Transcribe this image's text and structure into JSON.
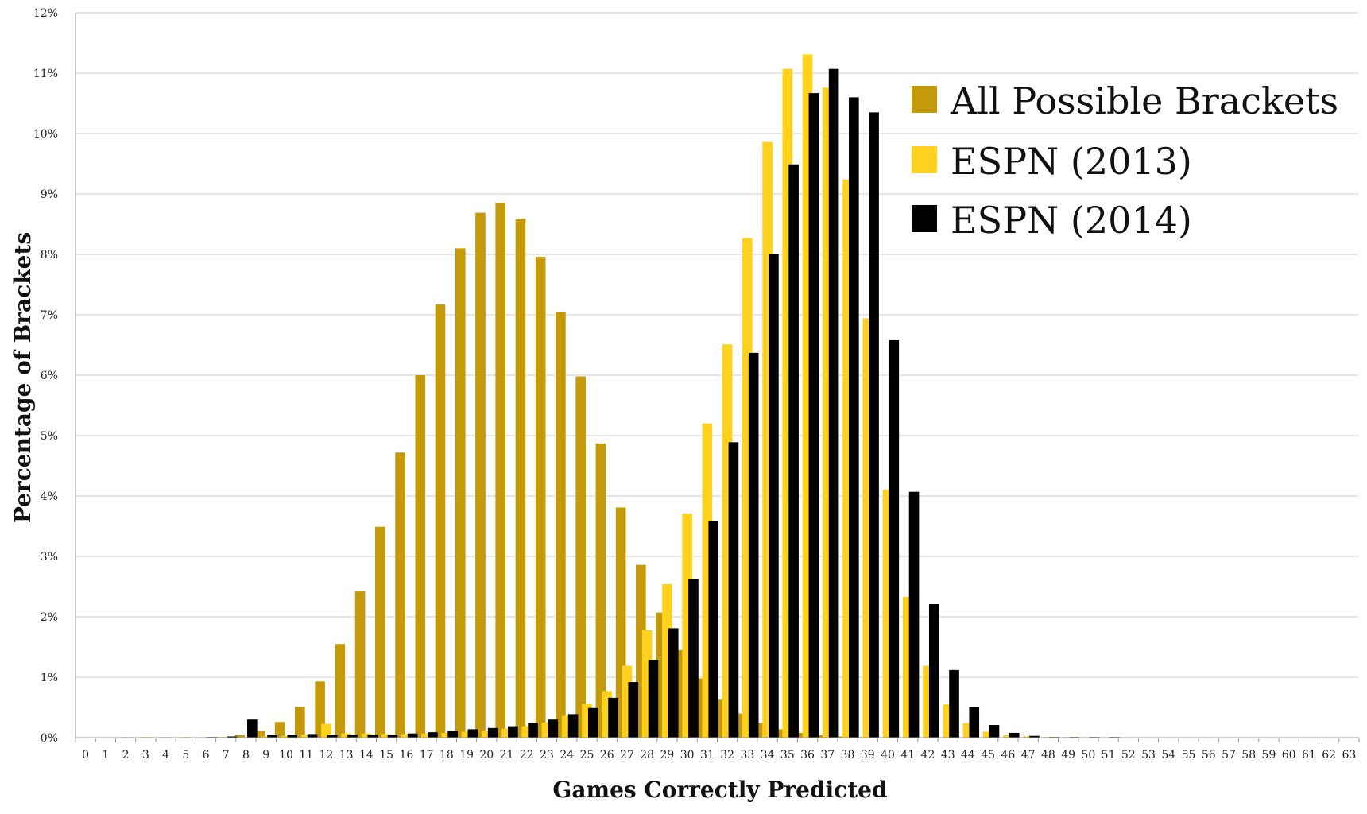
{
  "chart_data": {
    "type": "bar",
    "xlabel": "Games Correctly Predicted",
    "ylabel": "Percentage of Brackets",
    "ylim": [
      0,
      12
    ],
    "yticks": [
      "0%",
      "1%",
      "2%",
      "3%",
      "4%",
      "5%",
      "6%",
      "7%",
      "8%",
      "9%",
      "10%",
      "11%",
      "12%"
    ],
    "categories": [
      "0",
      "1",
      "2",
      "3",
      "4",
      "5",
      "6",
      "7",
      "8",
      "9",
      "10",
      "11",
      "12",
      "13",
      "14",
      "15",
      "16",
      "17",
      "18",
      "19",
      "20",
      "21",
      "22",
      "23",
      "24",
      "25",
      "26",
      "27",
      "28",
      "29",
      "30",
      "31",
      "32",
      "33",
      "34",
      "35",
      "36",
      "37",
      "38",
      "39",
      "40",
      "41",
      "42",
      "43",
      "44",
      "45",
      "46",
      "47",
      "48",
      "49",
      "50",
      "51",
      "52",
      "53",
      "54",
      "55",
      "56",
      "57",
      "58",
      "59",
      "60",
      "61",
      "62",
      "63"
    ],
    "grid": true,
    "legend_position": "top-right",
    "colors": {
      "all": "#C49A0A",
      "espn2013": "#FFD11F",
      "espn2014": "#000000"
    },
    "series": [
      {
        "name": "All Possible Brackets",
        "color": "#C49A0A",
        "values": [
          0,
          0,
          0,
          0,
          0,
          0,
          0,
          0.01,
          0.04,
          0.11,
          0.26,
          0.51,
          0.93,
          1.55,
          2.42,
          3.49,
          4.72,
          6.0,
          7.17,
          8.1,
          8.69,
          8.85,
          8.59,
          7.96,
          7.05,
          5.98,
          4.87,
          3.81,
          2.86,
          2.07,
          1.45,
          0.98,
          0.64,
          0.4,
          0.24,
          0.14,
          0.08,
          0.04,
          0.02,
          0.01,
          0,
          0,
          0,
          0,
          0,
          0,
          0,
          0,
          0,
          0,
          0,
          0,
          0,
          0,
          0,
          0,
          0,
          0,
          0,
          0,
          0,
          0,
          0,
          0
        ]
      },
      {
        "name": "ESPN (2013)",
        "color": "#FFD11F",
        "values": [
          0,
          0,
          0.01,
          0.01,
          0.01,
          0.01,
          0.01,
          0.01,
          0.01,
          0.02,
          0.03,
          0.05,
          0.23,
          0.07,
          0.07,
          0.06,
          0.06,
          0.07,
          0.08,
          0.1,
          0.12,
          0.15,
          0.19,
          0.25,
          0.36,
          0.56,
          0.77,
          1.19,
          1.78,
          2.54,
          3.71,
          5.2,
          6.51,
          8.27,
          9.86,
          11.07,
          11.31,
          10.76,
          9.24,
          6.94,
          4.11,
          2.33,
          1.19,
          0.55,
          0.24,
          0.1,
          0.04,
          0.02,
          0.01,
          0.01,
          0,
          0,
          0,
          0,
          0,
          0,
          0,
          0,
          0,
          0,
          0,
          0,
          0,
          0
        ]
      },
      {
        "name": "ESPN (2014)",
        "color": "#000000",
        "values": [
          0,
          0,
          0,
          0,
          0,
          0,
          0.01,
          0.02,
          0.3,
          0.05,
          0.05,
          0.06,
          0.05,
          0.05,
          0.05,
          0.05,
          0.07,
          0.09,
          0.11,
          0.14,
          0.16,
          0.19,
          0.24,
          0.3,
          0.39,
          0.49,
          0.66,
          0.92,
          1.29,
          1.81,
          2.63,
          3.58,
          4.89,
          6.37,
          8.0,
          9.49,
          10.67,
          11.07,
          10.6,
          10.35,
          6.58,
          4.07,
          2.21,
          1.12,
          0.51,
          0.21,
          0.08,
          0.03,
          0.01,
          0.01,
          0.01,
          0.01,
          0,
          0,
          0,
          0,
          0,
          0,
          0,
          0,
          0,
          0,
          0,
          0
        ]
      }
    ]
  }
}
